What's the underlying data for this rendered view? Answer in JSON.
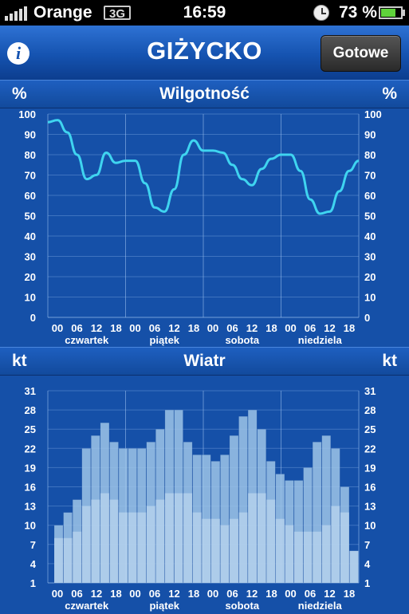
{
  "status_bar": {
    "carrier": "Orange",
    "network": "3G",
    "time": "16:59",
    "battery": "73 %",
    "battery_level": 0.73
  },
  "nav": {
    "title": "GIŻYCKO",
    "done_label": "Gotowe",
    "info_icon": "info-icon"
  },
  "humidity": {
    "title": "Wilgotność",
    "unit_left": "%",
    "unit_right": "%"
  },
  "wind": {
    "title": "Wiatr",
    "unit_left": "kt",
    "unit_right": "kt"
  },
  "colors": {
    "background": "#1550a8",
    "line": "#3fd4f0",
    "bar_gust": "#9ec4e8",
    "bar_mean": "#c4dcf2"
  },
  "chart_data": [
    {
      "type": "line",
      "title": "Wilgotność",
      "ylabel": "%",
      "ylim": [
        0,
        100
      ],
      "yticks": [
        "0",
        "10",
        "20",
        "30",
        "40",
        "50",
        "60",
        "70",
        "80",
        "90",
        "100"
      ],
      "hour_labels": [
        "00",
        "06",
        "12",
        "18"
      ],
      "day_labels": [
        "czwartek",
        "piątek",
        "sobota",
        "niedziela"
      ],
      "x_hours": [
        0,
        3,
        6,
        9,
        12,
        15,
        18,
        21,
        24,
        27,
        30,
        33,
        36,
        39,
        42,
        45,
        48,
        51,
        54,
        57,
        60,
        63,
        66,
        69,
        72,
        75,
        78,
        81,
        84,
        87,
        90,
        93,
        96
      ],
      "values": [
        96,
        97,
        91,
        80,
        68,
        70,
        81,
        76,
        77,
        77,
        66,
        54,
        52,
        63,
        80,
        87,
        82,
        82,
        81,
        75,
        68,
        65,
        73,
        78,
        80,
        80,
        72,
        58,
        51,
        52,
        62,
        72,
        77
      ],
      "grid": true
    },
    {
      "type": "bar",
      "title": "Wiatr",
      "ylabel": "kt",
      "ylim": [
        1,
        31
      ],
      "yticks": [
        "1",
        "4",
        "7",
        "10",
        "13",
        "16",
        "19",
        "22",
        "25",
        "28",
        "31"
      ],
      "hour_labels": [
        "00",
        "06",
        "12",
        "18"
      ],
      "day_labels": [
        "czwartek",
        "piątek",
        "sobota",
        "niedziela"
      ],
      "series": [
        {
          "name": "",
          "values": [
            8,
            8,
            9,
            13,
            14,
            15,
            14,
            12,
            12,
            12,
            13,
            14,
            15,
            15,
            15,
            12,
            11,
            11,
            10,
            11,
            12,
            15,
            15,
            14,
            11,
            10,
            9,
            9,
            9,
            10,
            13,
            12,
            6
          ]
        },
        {
          "name": "",
          "values": [
            10,
            12,
            14,
            22,
            24,
            26,
            23,
            22,
            22,
            22,
            23,
            25,
            28,
            28,
            23,
            21,
            21,
            20,
            21,
            24,
            27,
            28,
            25,
            20,
            18,
            17,
            17,
            19,
            23,
            24,
            22,
            16,
            6
          ]
        }
      ],
      "grid": true
    }
  ]
}
